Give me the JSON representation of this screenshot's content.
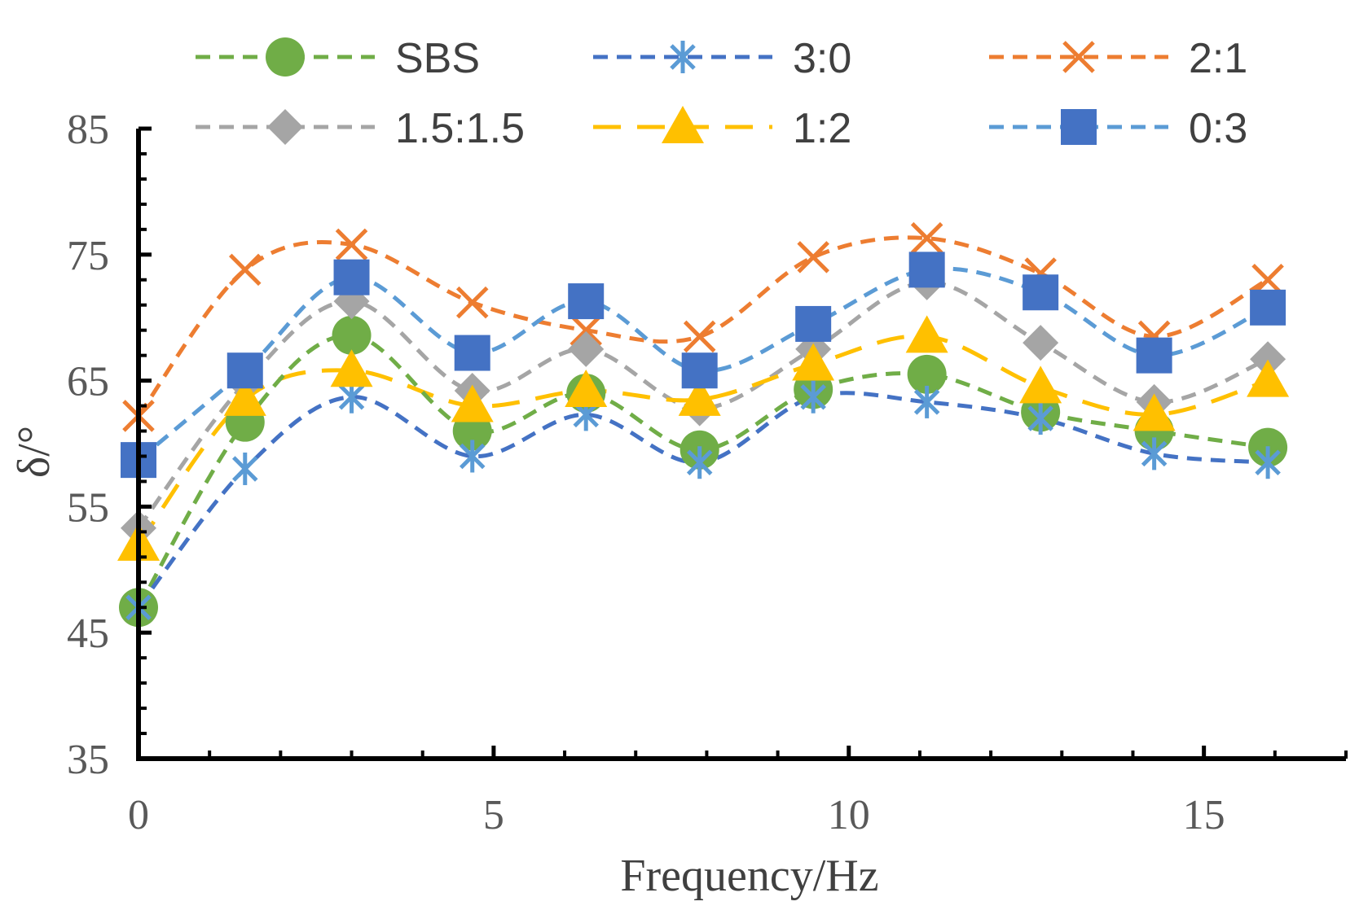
{
  "chart_data": {
    "type": "line",
    "title": "",
    "xlabel": "Frequency/Hz",
    "ylabel": "δ/°",
    "xlim": [
      0,
      17
    ],
    "ylim": [
      35,
      85
    ],
    "x_ticks": [
      0,
      5,
      10,
      15
    ],
    "y_ticks": [
      35,
      45,
      55,
      65,
      75,
      85
    ],
    "x_tick_labels": [
      "0",
      "5",
      "10",
      "15"
    ],
    "y_tick_labels": [
      "35",
      "45",
      "55",
      "65",
      "75",
      "85"
    ],
    "grid": false,
    "legend_position": "top",
    "x": [
      0,
      1.5,
      3,
      4.7,
      6.3,
      7.9,
      9.5,
      11.1,
      12.7,
      14.3,
      15.9
    ],
    "series": [
      {
        "name": "SBS",
        "color": "#70ad47",
        "marker": "circle",
        "dash": "dashed",
        "values": [
          47,
          61.7,
          68.6,
          61,
          64,
          59.5,
          64.3,
          65.5,
          62.5,
          61,
          59.7
        ]
      },
      {
        "name": "3:0",
        "color": "#4472c4",
        "marker_color": "#5b9bd5",
        "marker": "asterisk",
        "dash": "dashed",
        "values": [
          47,
          58,
          63.7,
          59,
          62.3,
          58.5,
          63.7,
          63.3,
          62,
          59.2,
          58.5
        ]
      },
      {
        "name": "2:1",
        "color": "#ed7d31",
        "marker": "x",
        "dash": "dashed",
        "values": [
          62.2,
          73.8,
          75.8,
          71.2,
          69,
          68.5,
          74.8,
          76.3,
          73.5,
          68.5,
          73
        ]
      },
      {
        "name": "1.5:1.5",
        "color": "#a5a5a5",
        "marker": "diamond",
        "dash": "dashed",
        "values": [
          53.3,
          64.8,
          71.3,
          64.2,
          67.5,
          62.8,
          67.5,
          72.8,
          68,
          63.3,
          66.7
        ]
      },
      {
        "name": "1:2",
        "color": "#ffc000",
        "marker": "triangle",
        "dash": "long-dash",
        "values": [
          52,
          63.5,
          65.8,
          63,
          64.2,
          63.5,
          66.3,
          68.5,
          64.5,
          62.3,
          65
        ]
      },
      {
        "name": "0:3",
        "color": "#5b9bd5",
        "marker_color": "#4472c4",
        "marker": "square",
        "dash": "dashed",
        "values": [
          58.7,
          65.8,
          73.2,
          67.2,
          71.3,
          65.8,
          69.5,
          73.8,
          72,
          67,
          70.8
        ]
      }
    ]
  }
}
